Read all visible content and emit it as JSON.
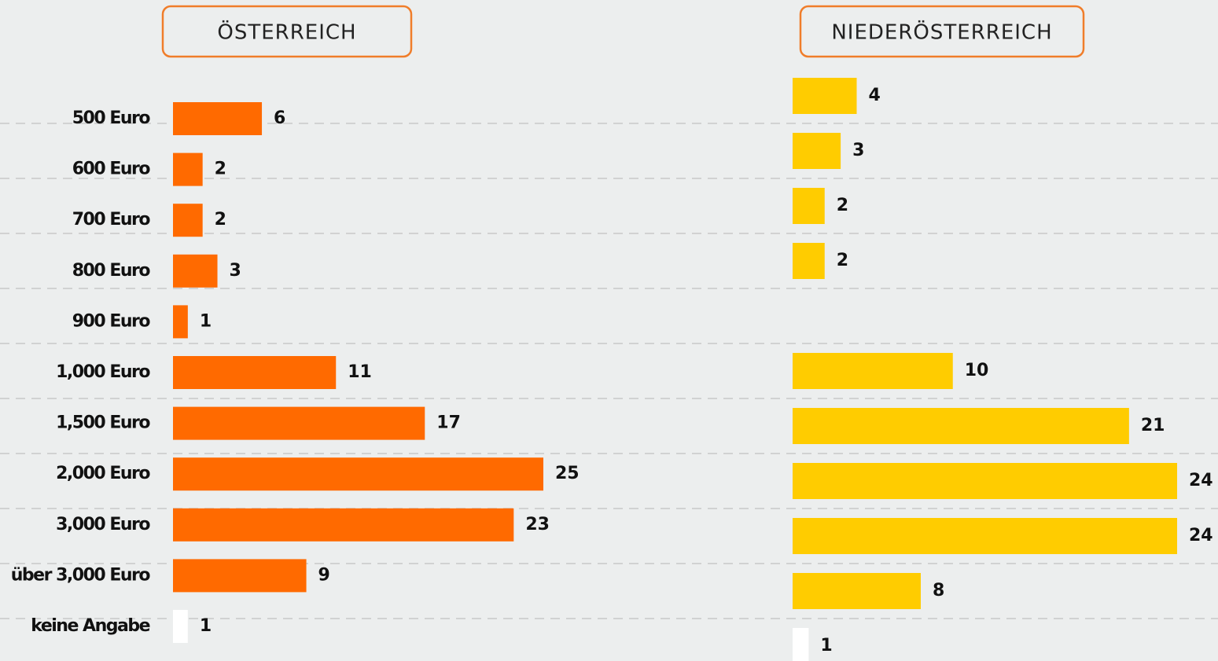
{
  "chart_data": [
    {
      "type": "bar",
      "title": "ÖSTERREICH",
      "categories": [
        "500 Euro",
        "600 Euro",
        "700 Euro",
        "800 Euro",
        "900 Euro",
        "1,000 Euro",
        "1,500 Euro",
        "2,000 Euro",
        "3,000 Euro",
        "über 3,000 Euro",
        "keine Angabe"
      ],
      "values": [
        6,
        2,
        2,
        3,
        1,
        11,
        17,
        25,
        23,
        9,
        1
      ],
      "colors": [
        "#ff6a00",
        "#ff6a00",
        "#ff6a00",
        "#ff6a00",
        "#ff6a00",
        "#ff6a00",
        "#ff6a00",
        "#ff6a00",
        "#ff6a00",
        "#ff6a00",
        "#ffffff"
      ],
      "xlim": [
        0,
        25
      ]
    },
    {
      "type": "bar",
      "title": "NIEDERÖSTERREICH",
      "values": [
        4,
        3,
        2,
        2,
        null,
        10,
        21,
        24,
        24,
        8,
        1
      ],
      "colors": [
        "#ffcc00",
        "#ffcc00",
        "#ffcc00",
        "#ffcc00",
        "#ffcc00",
        "#ffcc00",
        "#ffcc00",
        "#ffcc00",
        "#ffcc00",
        "#ffcc00",
        "#ffffff"
      ],
      "xlim": [
        0,
        24
      ]
    }
  ]
}
